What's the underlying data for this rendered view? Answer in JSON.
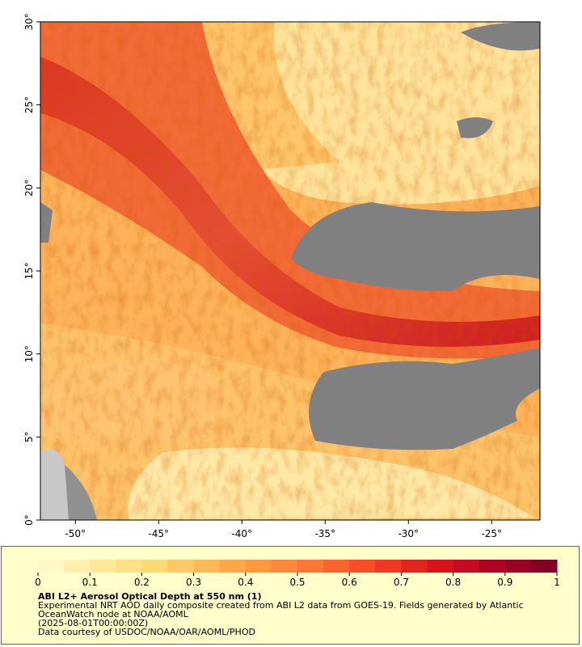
{
  "map": {
    "xlim": [
      -52.1,
      -22.1
    ],
    "ylim": [
      0,
      30
    ],
    "xticks": [
      {
        "value": -50,
        "label": "-50°"
      },
      {
        "value": -45,
        "label": "-45°"
      },
      {
        "value": -40,
        "label": "-40°"
      },
      {
        "value": -35,
        "label": "-35°"
      },
      {
        "value": -30,
        "label": "-30°"
      },
      {
        "value": -25,
        "label": "-25°"
      }
    ],
    "yticks": [
      {
        "value": 0,
        "label": "0°"
      },
      {
        "value": 5,
        "label": "5°"
      },
      {
        "value": 10,
        "label": "10°"
      },
      {
        "value": 15,
        "label": "15°"
      },
      {
        "value": 20,
        "label": "20°"
      },
      {
        "value": 25,
        "label": "25°"
      },
      {
        "value": 30,
        "label": "30°"
      }
    ]
  },
  "colorbar": {
    "lim": [
      0,
      1
    ],
    "ticks": [
      0,
      0.1,
      0.2,
      0.3,
      0.4,
      0.5,
      0.6,
      0.7,
      0.8,
      0.9,
      1
    ],
    "colors": [
      "#fff7c4",
      "#ffefaf",
      "#fee89a",
      "#fee187",
      "#fed976",
      "#fec965",
      "#feb856",
      "#fea64a",
      "#fd9741",
      "#fd883b",
      "#fc7635",
      "#fc622e",
      "#f94d29",
      "#f03824",
      "#e5241f",
      "#d8131e",
      "#c70a22",
      "#b10026",
      "#980026",
      "#800026"
    ]
  },
  "footer": {
    "title": "ABI L2+ Aerosol Optical Depth at 550 nm (1)",
    "description": "Experimental NRT AOD daily composite created from ABI L2 data from GOES-19. Fields generated by Atlantic OceanWatch node at NOAA/AOML",
    "date": "(2025-08-01T00:00:00Z)",
    "credit": "Data courtesy of USDOC/NOAA/OAR/AOML/PHOD"
  }
}
